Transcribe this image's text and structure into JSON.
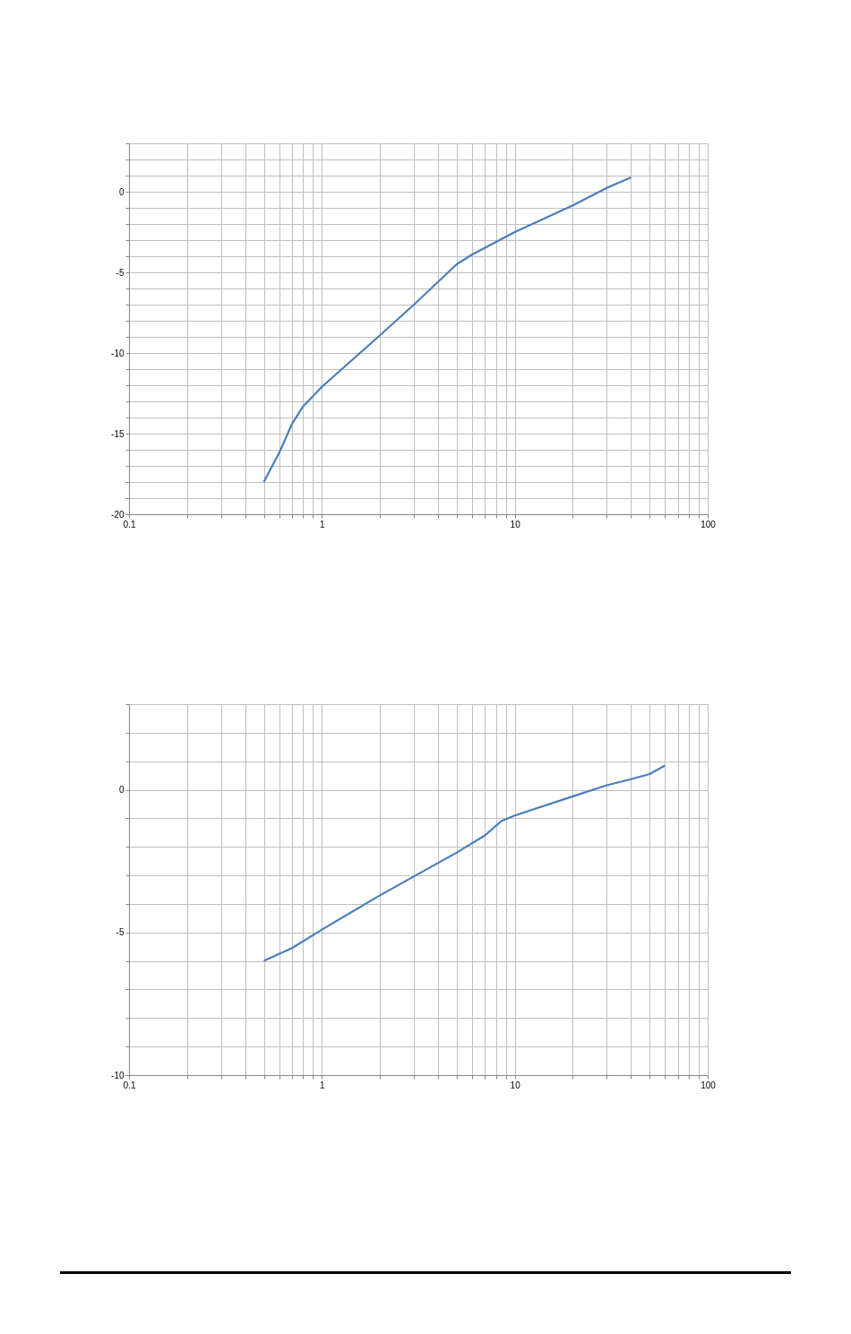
{
  "chart_data": [
    {
      "type": "line",
      "log": "x",
      "grid": true,
      "marker": "none",
      "line_style": "solid",
      "xlim": [
        0.1,
        100
      ],
      "ylim": [
        -20,
        3
      ],
      "xticks": [
        0.1,
        {
          "value": 0.2,
          "label": null
        },
        {
          "value": 0.3,
          "label": null
        },
        {
          "value": 0.4,
          "label": null
        },
        {
          "value": 0.5,
          "label": null
        },
        {
          "value": 0.6,
          "label": null
        },
        {
          "value": 0.7,
          "label": null
        },
        {
          "value": 0.8,
          "label": null
        },
        {
          "value": 0.9,
          "label": null
        },
        1,
        {
          "value": 2,
          "label": null
        },
        {
          "value": 3,
          "label": null
        },
        {
          "value": 4,
          "label": null
        },
        {
          "value": 5,
          "label": null
        },
        {
          "value": 6,
          "label": null
        },
        {
          "value": 7,
          "label": null
        },
        {
          "value": 8,
          "label": null
        },
        {
          "value": 9,
          "label": null
        },
        10,
        {
          "value": 20,
          "label": null
        },
        {
          "value": 30,
          "label": null
        },
        {
          "value": 40,
          "label": null
        },
        {
          "value": 50,
          "label": null
        },
        {
          "value": 60,
          "label": null
        },
        {
          "value": 70,
          "label": null
        },
        {
          "value": 80,
          "label": null
        },
        {
          "value": 90,
          "label": null
        },
        100
      ],
      "yticks": [
        -20,
        {
          "value": -19,
          "label": null
        },
        {
          "value": -18,
          "label": null
        },
        {
          "value": -17,
          "label": null
        },
        {
          "value": -16,
          "label": null
        },
        -15,
        {
          "value": -14,
          "label": null
        },
        {
          "value": -13,
          "label": null
        },
        {
          "value": -12,
          "label": null
        },
        {
          "value": -11,
          "label": null
        },
        -10,
        {
          "value": -9,
          "label": null
        },
        {
          "value": -8,
          "label": null
        },
        {
          "value": -7,
          "label": null
        },
        {
          "value": -6,
          "label": null
        },
        -5,
        {
          "value": -4,
          "label": null
        },
        {
          "value": -3,
          "label": null
        },
        {
          "value": -2,
          "label": null
        },
        {
          "value": -1,
          "label": null
        },
        0,
        {
          "value": 1,
          "label": null
        },
        {
          "value": 2,
          "label": null
        },
        {
          "value": 3,
          "label": null
        }
      ],
      "x": [
        0.5,
        0.6,
        0.7,
        0.8,
        1,
        2,
        3,
        5,
        6,
        10,
        20,
        30,
        40
      ],
      "series": [
        {
          "color": "#4a7ebb",
          "values": [
            -18.0,
            -16.2,
            -14.4,
            -13.3,
            -12.1,
            -8.9,
            -7.0,
            -4.5,
            -3.9,
            -2.5,
            -0.85,
            0.24,
            0.89
          ]
        }
      ]
    },
    {
      "type": "line",
      "log": "x",
      "grid": true,
      "marker": "none",
      "line_style": "solid",
      "xlim": [
        0.1,
        100
      ],
      "ylim": [
        -10,
        3
      ],
      "xticks": [
        0.1,
        {
          "value": 0.2,
          "label": null
        },
        {
          "value": 0.3,
          "label": null
        },
        {
          "value": 0.4,
          "label": null
        },
        {
          "value": 0.5,
          "label": null
        },
        {
          "value": 0.6,
          "label": null
        },
        {
          "value": 0.7,
          "label": null
        },
        {
          "value": 0.8,
          "label": null
        },
        {
          "value": 0.9,
          "label": null
        },
        1,
        {
          "value": 2,
          "label": null
        },
        {
          "value": 3,
          "label": null
        },
        {
          "value": 4,
          "label": null
        },
        {
          "value": 5,
          "label": null
        },
        {
          "value": 6,
          "label": null
        },
        {
          "value": 7,
          "label": null
        },
        {
          "value": 8,
          "label": null
        },
        {
          "value": 9,
          "label": null
        },
        10,
        {
          "value": 20,
          "label": null
        },
        {
          "value": 30,
          "label": null
        },
        {
          "value": 40,
          "label": null
        },
        {
          "value": 50,
          "label": null
        },
        {
          "value": 60,
          "label": null
        },
        {
          "value": 70,
          "label": null
        },
        {
          "value": 80,
          "label": null
        },
        {
          "value": 90,
          "label": null
        },
        100
      ],
      "yticks": [
        -10,
        {
          "value": -9,
          "label": null
        },
        {
          "value": -8,
          "label": null
        },
        {
          "value": -7,
          "label": null
        },
        {
          "value": -6,
          "label": null
        },
        -5,
        {
          "value": -4,
          "label": null
        },
        {
          "value": -3,
          "label": null
        },
        {
          "value": -2,
          "label": null
        },
        {
          "value": -1,
          "label": null
        },
        0,
        {
          "value": 1,
          "label": null
        },
        {
          "value": 2,
          "label": null
        },
        {
          "value": 3,
          "label": null
        }
      ],
      "x": [
        0.5,
        0.7,
        1,
        2,
        5,
        7,
        8.5,
        10,
        20,
        30,
        40,
        50,
        60
      ],
      "series": [
        {
          "color": "#4a7ebb",
          "values": [
            -6.0,
            -5.55,
            -4.9,
            -3.7,
            -2.2,
            -1.6,
            -1.1,
            -0.9,
            -0.23,
            0.16,
            0.37,
            0.55,
            0.85
          ]
        }
      ]
    }
  ]
}
